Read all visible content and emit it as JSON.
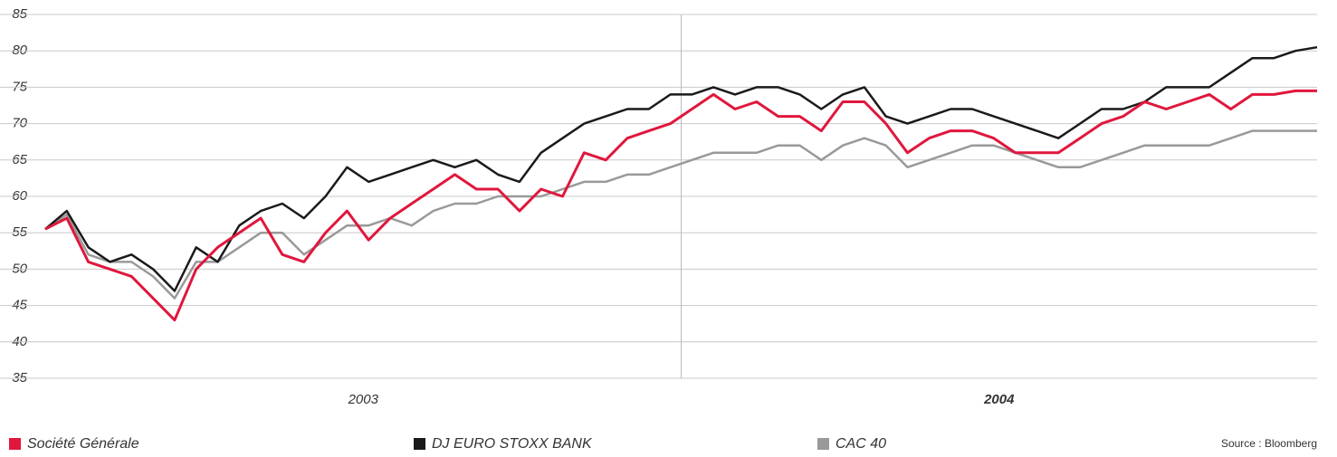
{
  "chart_data": {
    "type": "line",
    "periods": [
      "2003",
      "2004"
    ],
    "series": [
      {
        "name": "Société Générale",
        "color": "#e0173c",
        "values": [
          55.5,
          57,
          51,
          50,
          49,
          46,
          43,
          50,
          53,
          55,
          57,
          52,
          51,
          55,
          58,
          54,
          57,
          59,
          61,
          63,
          61,
          61,
          58,
          61,
          60,
          66,
          65,
          68,
          69,
          70,
          72,
          74,
          72,
          73,
          71,
          71,
          69,
          73,
          73,
          70,
          66,
          68,
          69,
          69,
          68,
          66,
          66,
          66,
          68,
          70,
          71,
          73,
          72,
          73,
          74,
          72,
          74,
          74,
          74.5,
          74.5
        ]
      },
      {
        "name": "DJ EURO STOXX BANK",
        "color": "#1a1a1a",
        "values": [
          55.5,
          58,
          53,
          51,
          52,
          50,
          47,
          53,
          51,
          56,
          58,
          59,
          57,
          60,
          64,
          62,
          63,
          64,
          65,
          64,
          65,
          63,
          62,
          66,
          68,
          70,
          71,
          72,
          72,
          74,
          74,
          75,
          74,
          75,
          75,
          74,
          72,
          74,
          75,
          71,
          70,
          71,
          72,
          72,
          71,
          70,
          69,
          68,
          70,
          72,
          72,
          73,
          75,
          75,
          75,
          77,
          79,
          79,
          80,
          80.5
        ]
      },
      {
        "name": "CAC 40",
        "color": "#999999",
        "values": [
          55.5,
          57.5,
          52,
          51,
          51,
          49,
          46,
          51,
          51,
          53,
          55,
          55,
          52,
          54,
          56,
          56,
          57,
          56,
          58,
          59,
          59,
          60,
          60,
          60,
          61,
          62,
          62,
          63,
          63,
          64,
          65,
          66,
          66,
          66,
          67,
          67,
          65,
          67,
          68,
          67,
          64,
          65,
          66,
          67,
          67,
          66,
          65,
          64,
          64,
          65,
          66,
          67,
          67,
          67,
          67,
          68,
          69,
          69,
          69,
          69
        ]
      }
    ],
    "ylim": [
      35,
      85
    ],
    "yticks": [
      35,
      40,
      45,
      50,
      55,
      60,
      65,
      70,
      75,
      80,
      85
    ],
    "grid": true,
    "source": "Source : Bloomberg"
  }
}
